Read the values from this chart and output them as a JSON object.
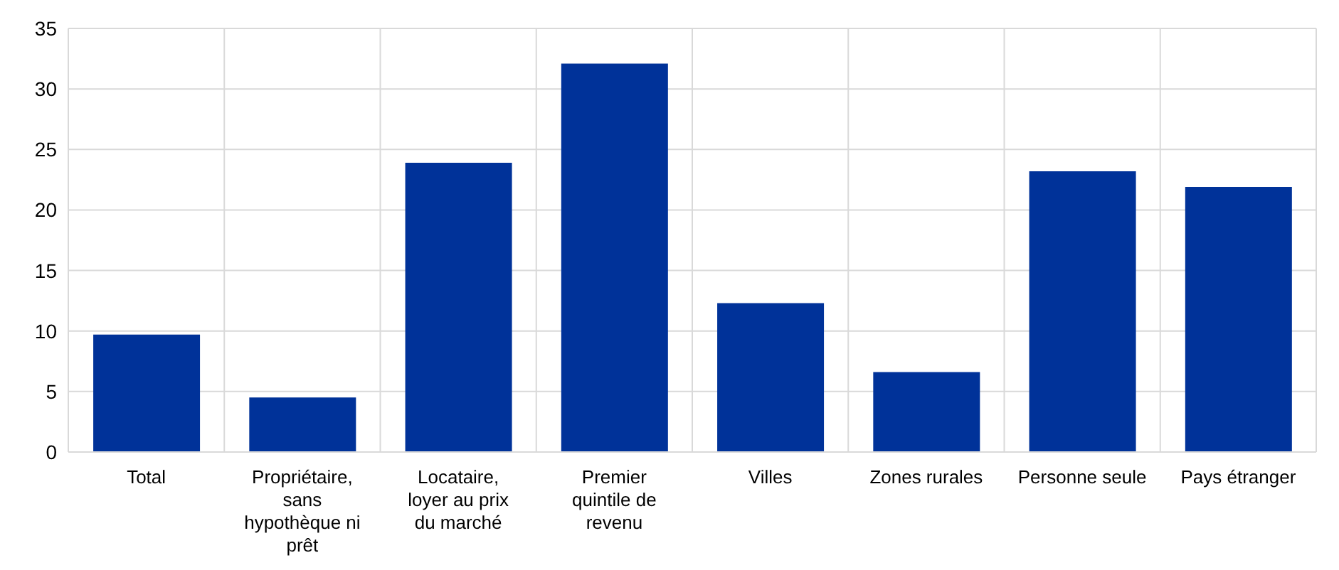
{
  "chart_data": {
    "type": "bar",
    "categories": [
      "Total",
      "Propriétaire, sans hypothèque ni prêt",
      "Locataire, loyer au prix du marché",
      "Premier quintile de revenu",
      "Villes",
      "Zones rurales",
      "Personne seule",
      "Pays étranger"
    ],
    "values": [
      9.7,
      4.5,
      23.9,
      32.1,
      12.3,
      6.6,
      23.2,
      21.9
    ],
    "color": "#003299",
    "ylim": [
      0,
      35
    ],
    "yticks": [
      0,
      5,
      10,
      15,
      20,
      25,
      30,
      35
    ],
    "grid": true
  }
}
